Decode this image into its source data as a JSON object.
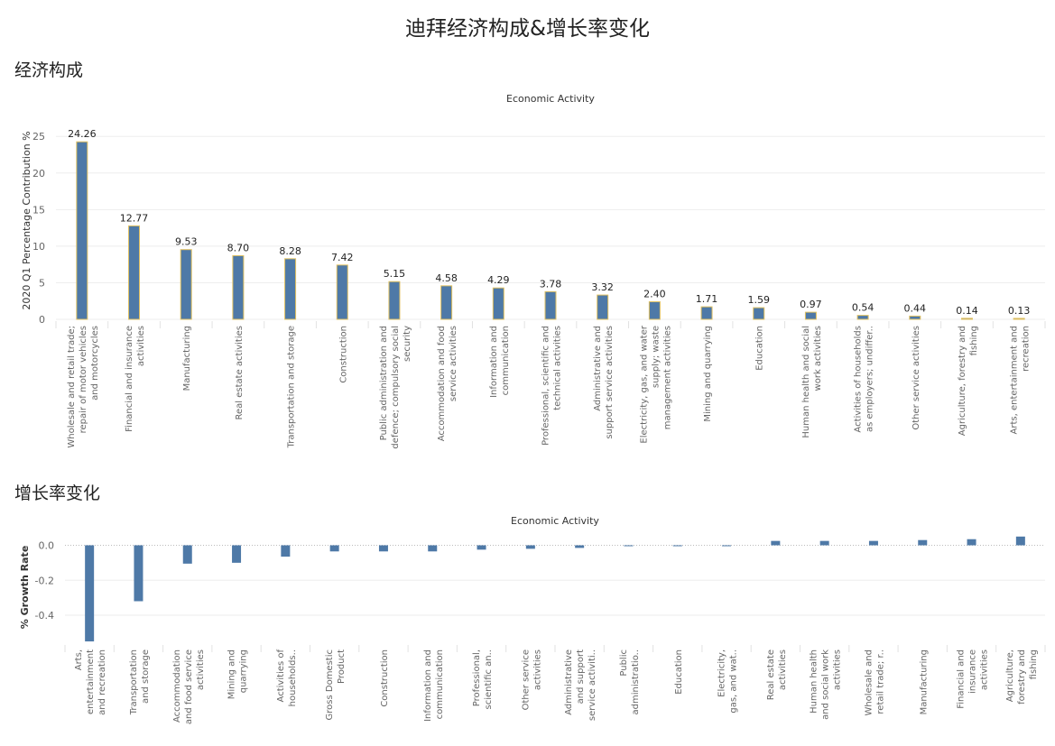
{
  "page": {
    "title": "迪拜经济构成&增长率变化",
    "section1_title": "经济构成",
    "section2_title": "增长率变化"
  },
  "chart_data": [
    {
      "type": "bar",
      "title": "Economic Activity",
      "xlabel": "",
      "ylabel": "2020 Q1 Percentage Contribution %",
      "ylim": [
        0,
        27
      ],
      "yticks": [
        0,
        5,
        10,
        15,
        20,
        25
      ],
      "grid": true,
      "bar_color": "#4e79a7",
      "bar_edge_color": "#e0c060",
      "data_labels": true,
      "categories": [
        [
          "Wholesale and retail trade;",
          "repair of motor vehicles",
          "and motorcycles"
        ],
        [
          "Financial and insurance",
          "activities"
        ],
        [
          "Manufacturing"
        ],
        [
          "Real estate activities"
        ],
        [
          "Transportation and storage"
        ],
        [
          "Construction"
        ],
        [
          "Public administration and",
          "defence; compulsory social",
          "security"
        ],
        [
          "Accommodation and food",
          "service activities"
        ],
        [
          "Information and",
          "communication"
        ],
        [
          "Professional, scientific and",
          "technical activities"
        ],
        [
          "Administrative and",
          "support service activities"
        ],
        [
          "Electricity, gas, and water",
          "supply; waste",
          "management activities"
        ],
        [
          "Mining and quarrying"
        ],
        [
          "Education"
        ],
        [
          "Human health and social",
          "work activities"
        ],
        [
          "Activities of households",
          "as employers; undiffer.."
        ],
        [
          "Other service activities"
        ],
        [
          "Agriculture, forestry and",
          "fishing"
        ],
        [
          "Arts, entertainment and",
          "recreation"
        ]
      ],
      "values": [
        24.26,
        12.77,
        9.53,
        8.7,
        8.28,
        7.42,
        5.15,
        4.58,
        4.29,
        3.78,
        3.32,
        2.4,
        1.71,
        1.59,
        0.97,
        0.54,
        0.44,
        0.14,
        0.13
      ],
      "value_labels": [
        "24.26",
        "12.77",
        "9.53",
        "8.70",
        "8.28",
        "7.42",
        "5.15",
        "4.58",
        "4.29",
        "3.78",
        "3.32",
        "2.40",
        "1.71",
        "1.59",
        "0.97",
        "0.54",
        "0.44",
        "0.14",
        "0.13"
      ]
    },
    {
      "type": "bar",
      "title": "Economic Activity",
      "xlabel": "",
      "ylabel": "% Growth Rate",
      "ylim": [
        -0.56,
        0.08
      ],
      "yticks": [
        0.0,
        -0.2,
        -0.4
      ],
      "ytick_labels": [
        "0.0",
        "-0.2",
        "-0.4"
      ],
      "grid": true,
      "bar_color": "#4e79a7",
      "data_labels": false,
      "categories": [
        [
          "Arts,",
          "entertainment",
          "and recreation"
        ],
        [
          "Transportation",
          "and storage"
        ],
        [
          "Accommodation",
          "and food service",
          "activities"
        ],
        [
          "Mining and",
          "quarrying"
        ],
        [
          "Activities of",
          "households.."
        ],
        [
          "Gross Domestic",
          "Product"
        ],
        [
          "Construction"
        ],
        [
          "Information and",
          "communication"
        ],
        [
          "Professional,",
          "scientific an.."
        ],
        [
          "Other service",
          "activities"
        ],
        [
          "Administrative",
          "and support",
          "service activiti.."
        ],
        [
          "Public",
          "administratio.."
        ],
        [
          "Education"
        ],
        [
          "Electricity,",
          "gas, and wat.."
        ],
        [
          "Real estate",
          "activities"
        ],
        [
          "Human health",
          "and social work",
          "activities"
        ],
        [
          "Wholesale and",
          "retail trade; r.."
        ],
        [
          "Manufacturing"
        ],
        [
          "Financial and",
          "insurance",
          "activities"
        ],
        [
          "Agriculture,",
          "forestry and",
          "fishing"
        ]
      ],
      "values": [
        -0.55,
        -0.32,
        -0.105,
        -0.1,
        -0.065,
        -0.035,
        -0.035,
        -0.035,
        -0.025,
        -0.02,
        -0.015,
        -0.005,
        -0.005,
        -0.005,
        0.025,
        0.025,
        0.025,
        0.03,
        0.035,
        0.05
      ]
    }
  ]
}
